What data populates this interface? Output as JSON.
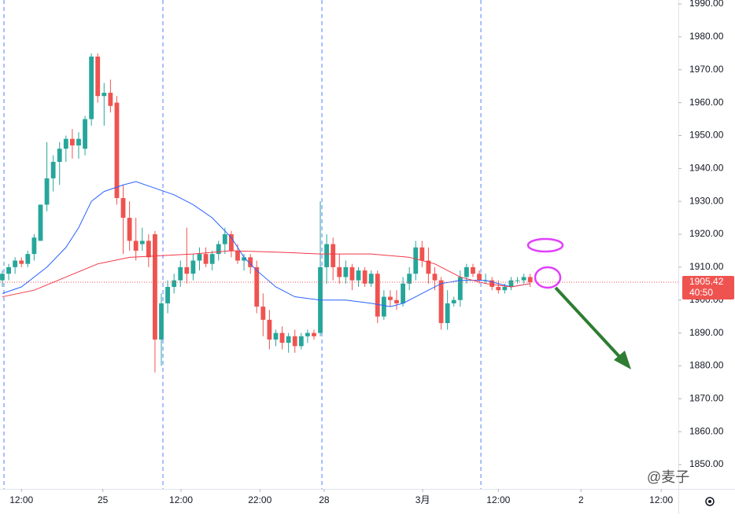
{
  "chart_data": {
    "type": "candlestick",
    "open": [
      1906,
      1908,
      1910,
      1912,
      1911,
      1914,
      1918,
      1929,
      1937,
      1942,
      1946,
      1949,
      1947,
      1946,
      1955,
      1974,
      1962,
      1963,
      1960,
      1931,
      1925,
      1918,
      1917,
      1918,
      1920,
      1888,
      1899,
      1904,
      1906,
      1910,
      1908,
      1912,
      1914,
      1911,
      1914,
      1917,
      1920,
      1915,
      1912,
      1913,
      1910,
      1898,
      1894,
      1888,
      1890,
      1887,
      1889,
      1886,
      1889,
      1890,
      1890,
      1910,
      1917,
      1910,
      1907,
      1910,
      1906,
      1909,
      1905,
      1908,
      1895,
      1901,
      1900,
      1899,
      1905,
      1908,
      1916,
      1912,
      1908,
      1906,
      1893,
      1899,
      1900,
      1907,
      1910,
      1908,
      1906,
      1906,
      1904,
      1903,
      1904,
      1906,
      1906,
      1907
    ],
    "high": [
      1909,
      1911,
      1913,
      1913,
      1915,
      1920,
      1929,
      1948,
      1944,
      1948,
      1950,
      1952,
      1951,
      1956,
      1975,
      1975,
      1966,
      1967,
      1962,
      1935,
      1930,
      1925,
      1922,
      1920,
      1921,
      1902,
      1906,
      1908,
      1912,
      1922,
      1914,
      1916,
      1916,
      1915,
      1918,
      1922,
      1921,
      1917,
      1914,
      1914,
      1912,
      1902,
      1897,
      1891,
      1892,
      1890,
      1891,
      1890,
      1891,
      1891,
      1930,
      1920,
      1919,
      1914,
      1912,
      1911,
      1910,
      1910,
      1909,
      1909,
      1903,
      1903,
      1903,
      1907,
      1910,
      1918,
      1918,
      1916,
      1910,
      1907,
      1903,
      1901,
      1909,
      1911,
      1911,
      1909,
      1908,
      1907,
      1906,
      1905,
      1907,
      1907,
      1908,
      1908
    ],
    "low": [
      1904,
      1906,
      1908,
      1910,
      1910,
      1912,
      1918,
      1927,
      1933,
      1935,
      1942,
      1943,
      1943,
      1944,
      1953,
      1960,
      1953,
      1957,
      1929,
      1914,
      1915,
      1912,
      1915,
      1910,
      1878,
      1880,
      1896,
      1902,
      1904,
      1905,
      1906,
      1909,
      1910,
      1909,
      1912,
      1914,
      1913,
      1911,
      1909,
      1908,
      1896,
      1889,
      1885,
      1886,
      1885,
      1884,
      1884,
      1885,
      1887,
      1888,
      1889,
      1905,
      1906,
      1905,
      1905,
      1903,
      1904,
      1904,
      1904,
      1893,
      1894,
      1898,
      1897,
      1898,
      1903,
      1906,
      1910,
      1905,
      1903,
      1891,
      1891,
      1898,
      1898,
      1905,
      1907,
      1905,
      1905,
      1903,
      1902,
      1902,
      1903,
      1905,
      1905,
      1904
    ],
    "close": [
      1908,
      1910,
      1912,
      1911,
      1914,
      1919,
      1929,
      1937,
      1942,
      1946,
      1949,
      1947,
      1949,
      1955,
      1974,
      1962,
      1963,
      1959,
      1931,
      1925,
      1918,
      1915,
      1918,
      1913,
      1888,
      1899,
      1904,
      1906,
      1910,
      1908,
      1912,
      1914,
      1911,
      1914,
      1917,
      1920,
      1915,
      1912,
      1913,
      1910,
      1898,
      1894,
      1888,
      1890,
      1887,
      1889,
      1886,
      1889,
      1890,
      1889,
      1910,
      1917,
      1910,
      1907,
      1910,
      1906,
      1909,
      1905,
      1908,
      1895,
      1901,
      1900,
      1899,
      1905,
      1908,
      1916,
      1912,
      1908,
      1906,
      1893,
      1899,
      1900,
      1907,
      1910,
      1908,
      1906,
      1906,
      1904,
      1903,
      1904,
      1906,
      1906,
      1907,
      1905.42
    ],
    "up_color": "#26a69a",
    "down_color": "#ef5350",
    "overlays": [
      {
        "color": "#2962ff",
        "x": [
          0,
          3,
          7,
          10,
          12,
          14,
          16,
          19,
          21,
          24,
          27,
          30,
          33,
          36,
          38,
          40,
          43,
          46,
          50,
          54,
          58,
          61,
          63,
          66,
          69,
          72,
          76,
          80,
          83
        ],
        "values": [
          1902,
          1904,
          1910,
          1916,
          1922,
          1930,
          1933,
          1935,
          1936,
          1934,
          1932,
          1929,
          1925,
          1919,
          1913,
          1909,
          1904,
          1901,
          1900,
          1900,
          1899,
          1898,
          1899,
          1902,
          1905,
          1906,
          1906,
          1904,
          1905
        ]
      },
      {
        "color": "#f23645",
        "x": [
          0,
          5,
          10,
          15,
          20,
          25,
          30,
          36,
          44,
          50,
          58,
          64,
          68,
          72,
          76,
          80,
          83
        ],
        "values": [
          1901,
          1903,
          1907,
          1911,
          1913,
          1913.5,
          1914,
          1915,
          1914.5,
          1914,
          1914,
          1913,
          1911,
          1907,
          1905,
          1904,
          1905
        ]
      }
    ],
    "session_breaks": [
      0.25,
      25.25,
      50.25,
      75.25
    ],
    "last_price": 1905.42,
    "countdown": "40:50",
    "watermark": "@麦子",
    "xlim": [
      -0.37,
      106.3
    ],
    "xticks": [
      {
        "value": 3,
        "label": "12:00"
      },
      {
        "value": 15.8,
        "label": "25"
      },
      {
        "value": 28.1,
        "label": "12:00"
      },
      {
        "value": 40.5,
        "label": "22:00"
      },
      {
        "value": 50.6,
        "label": "28"
      },
      {
        "value": 66.1,
        "label": "3月"
      },
      {
        "value": 78,
        "label": "12:00"
      },
      {
        "value": 91,
        "label": "2"
      },
      {
        "value": 103.6,
        "label": "12:00"
      }
    ],
    "ylim": [
      1842.6,
      1991.2
    ],
    "yticks": [
      {
        "value": 1850,
        "label": "1850.00"
      },
      {
        "value": 1860,
        "label": "1860.00"
      },
      {
        "value": 1870,
        "label": "1870.00"
      },
      {
        "value": 1880,
        "label": "1880.00"
      },
      {
        "value": 1890,
        "label": "1890.00"
      },
      {
        "value": 1900,
        "label": "1900.00"
      },
      {
        "value": 1910,
        "label": "1910.00"
      },
      {
        "value": 1920,
        "label": "1920.00"
      },
      {
        "value": 1930,
        "label": "1930.00"
      },
      {
        "value": 1940,
        "label": "1940.00"
      },
      {
        "value": 1950,
        "label": "1950.00"
      },
      {
        "value": 1960,
        "label": "1960.00"
      },
      {
        "value": 1970,
        "label": "1970.00"
      },
      {
        "value": 1980,
        "label": "1980.00"
      },
      {
        "value": 1990,
        "label": "1990.00"
      }
    ]
  }
}
